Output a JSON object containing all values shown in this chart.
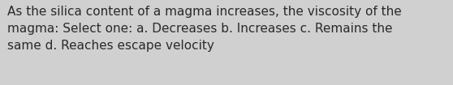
{
  "line1": "As the silica content of a magma increases, the viscosity of the",
  "line2": "magma: Select one: a. Decreases b. Increases c. Remains the",
  "line3": "same d. Reaches escape velocity",
  "background_color": "#d0d0d0",
  "text_color": "#2a2a2a",
  "font_size": 11.0,
  "fig_width": 5.58,
  "fig_height": 1.05,
  "dpi": 100
}
